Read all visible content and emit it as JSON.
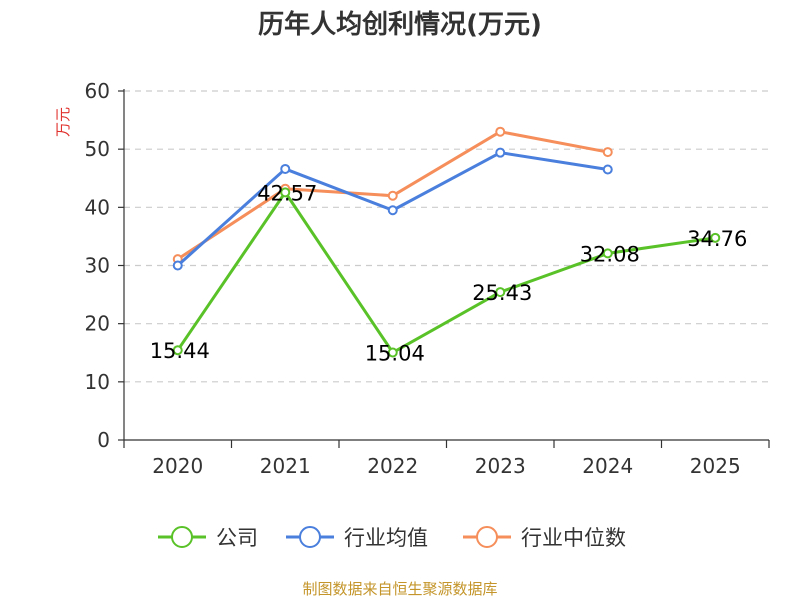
{
  "chart_data": {
    "type": "line",
    "title": "历年人均创利情况(万元)",
    "ylabel": "万元",
    "xlabel": "",
    "categories": [
      "2020",
      "2021",
      "2022",
      "2023",
      "2024",
      "2025"
    ],
    "ylim": [
      0,
      60
    ],
    "yticks": [
      0,
      10,
      20,
      30,
      40,
      50,
      60
    ],
    "grid": true,
    "legend_position": "bottom",
    "series": [
      {
        "name": "公司",
        "color": "#5ac229",
        "values": [
          15.44,
          42.57,
          15.04,
          25.43,
          32.08,
          34.76
        ],
        "labels": [
          "15.44",
          "42.57",
          "15.04",
          "25.43",
          "32.08",
          "34.76"
        ]
      },
      {
        "name": "行业均值",
        "color": "#4a7fdd",
        "values": [
          30.0,
          46.6,
          39.5,
          49.4,
          46.5,
          null
        ]
      },
      {
        "name": "行业中位数",
        "color": "#f58e5a",
        "values": [
          31.1,
          43.2,
          42.0,
          53.0,
          49.5,
          null
        ]
      }
    ],
    "source": "制图数据来自恒生聚源数据库"
  },
  "colors": {
    "axis": "#333333",
    "grid": "#cccccc",
    "ylabel": "#e0312d",
    "source": "#c4952a"
  }
}
